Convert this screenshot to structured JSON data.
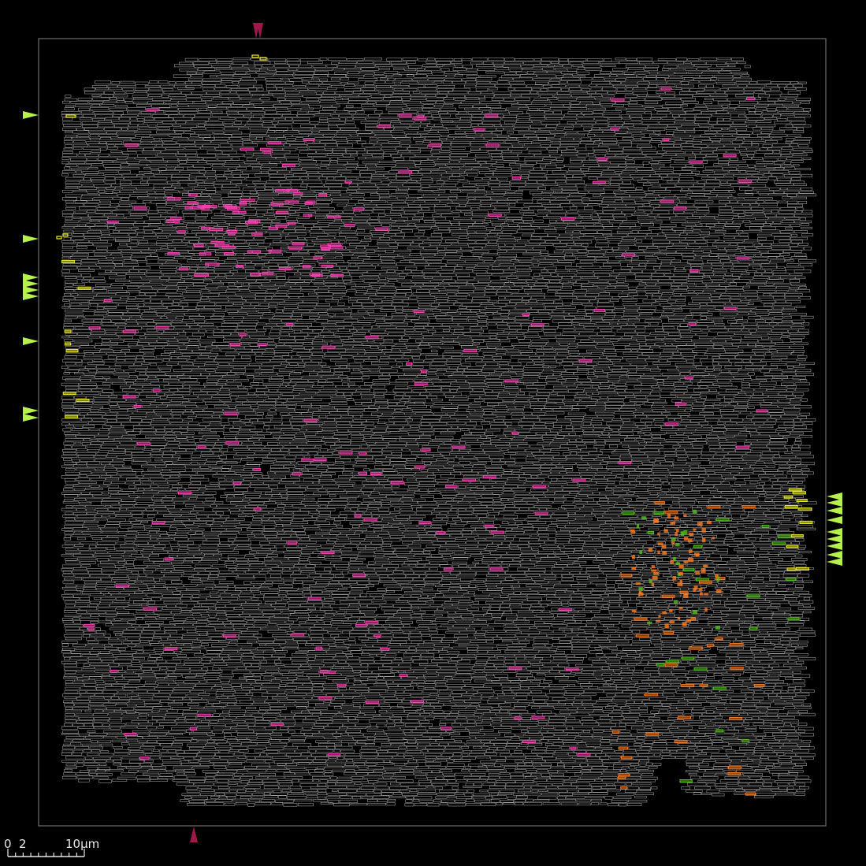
{
  "viewer": {
    "background_color": "#000000",
    "frame_color": "#6e6e6e",
    "cell_outline_color": "#a8a8a8",
    "cell_highlight_colors": {
      "magenta": "#ff3fb4",
      "yellow": "#f0f020",
      "orange": "#ff7a1a",
      "green": "#52c41a"
    },
    "marker_colors": {
      "left_and_right_markers": "#b6f04a",
      "top_and_bottom_markers": "#a0184a"
    }
  },
  "scale_bar": {
    "tick_start": "0",
    "tick_second": "2",
    "tick_end": "10μm"
  }
}
